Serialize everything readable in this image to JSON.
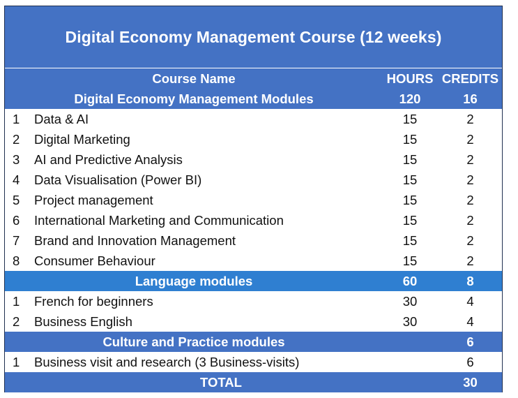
{
  "title": "Digital Economy Management Course (12 weeks)",
  "header": {
    "course_name": "Course Name",
    "hours": "HOURS",
    "credits": "CREDITS"
  },
  "sections": [
    {
      "name": "Digital Economy Management Modules",
      "hours": "120",
      "credits": "16",
      "rows": [
        {
          "num": "1",
          "name": "Data & AI",
          "hours": "15",
          "credits": "2"
        },
        {
          "num": "2",
          "name": "Digital Marketing",
          "hours": "15",
          "credits": "2"
        },
        {
          "num": "3",
          "name": "AI and Predictive Analysis",
          "hours": "15",
          "credits": "2"
        },
        {
          "num": "4",
          "name": "Data Visualisation (Power BI)",
          "hours": "15",
          "credits": "2"
        },
        {
          "num": "5",
          "name": "Project management",
          "hours": "15",
          "credits": "2"
        },
        {
          "num": "6",
          "name": "International Marketing and Communication",
          "hours": "15",
          "credits": "2"
        },
        {
          "num": "7",
          "name": "Brand and Innovation Management",
          "hours": "15",
          "credits": "2"
        },
        {
          "num": "8",
          "name": "Consumer Behaviour",
          "hours": "15",
          "credits": "2"
        }
      ]
    },
    {
      "name": "Language modules",
      "hours": "60",
      "credits": "8",
      "rows": [
        {
          "num": "1",
          "name": "French for beginners",
          "hours": "30",
          "credits": "4"
        },
        {
          "num": "2",
          "name": "Business English",
          "hours": "30",
          "credits": "4"
        }
      ]
    },
    {
      "name": "Culture and Practice modules",
      "hours": "",
      "credits": "6",
      "rows": [
        {
          "num": "1",
          "name": "Business visit and research (3 Business-visits)",
          "hours": "",
          "credits": "6"
        }
      ]
    }
  ],
  "total": {
    "label": "TOTAL",
    "credits": "30"
  },
  "colors": {
    "header_blue": "#4472c4",
    "section_bright_blue": "#2f7fd1",
    "text_white": "#ffffff"
  }
}
